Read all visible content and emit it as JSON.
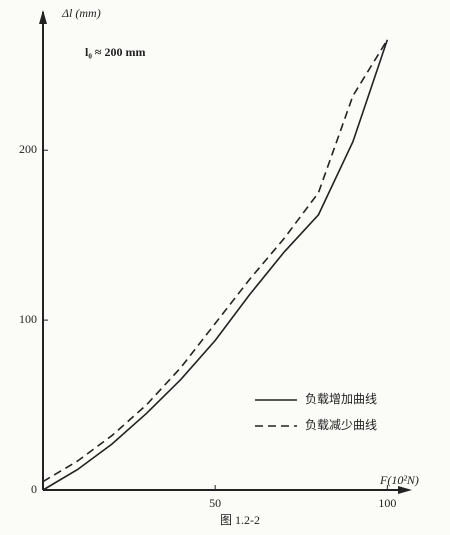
{
  "chart_data": {
    "type": "line",
    "y_label": "Δl (mm)",
    "x_label": "F(10²N)",
    "annotation": "l₀ ≈ 200 mm",
    "caption": "图 1.2-2",
    "x": [
      0,
      10,
      20,
      30,
      40,
      50,
      60,
      70,
      80,
      90,
      100
    ],
    "series": [
      {
        "name": "负载增加曲线",
        "color": "#222222",
        "dash": "solid",
        "values": [
          0,
          12,
          27,
          45,
          65,
          88,
          115,
          140,
          162,
          205,
          265
        ]
      },
      {
        "name": "负载减少曲线",
        "color": "#222222",
        "dash": "dashed",
        "values": [
          5,
          17,
          32,
          50,
          72,
          98,
          124,
          148,
          175,
          232,
          265
        ]
      }
    ],
    "xlim": [
      0,
      106
    ],
    "ylim": [
      0,
      279
    ],
    "xticks": [
      50,
      100
    ],
    "yticks": [
      0,
      100,
      200
    ],
    "legend": "lower right",
    "grid": false
  }
}
